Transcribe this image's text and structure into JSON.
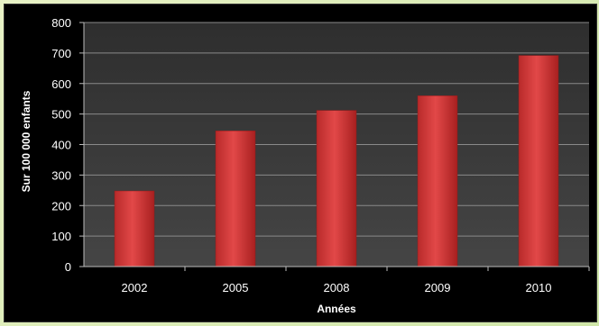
{
  "chart_data": {
    "type": "bar",
    "categories": [
      "2002",
      "2005",
      "2008",
      "2009",
      "2010"
    ],
    "values": [
      248,
      445,
      512,
      560,
      692
    ],
    "title": "",
    "xlabel": "Années",
    "ylabel": "Sur 100 000 enfants",
    "ylim": [
      0,
      800
    ],
    "yticks": [
      0,
      100,
      200,
      300,
      400,
      500,
      600,
      700,
      800
    ],
    "grid": true,
    "legend": "none",
    "colors": {
      "bar": "#d23a3a",
      "plot_background": "#3a3a3a",
      "frame_background": "#000000",
      "grid": "#8a8a8a",
      "text": "#ffffff"
    }
  }
}
